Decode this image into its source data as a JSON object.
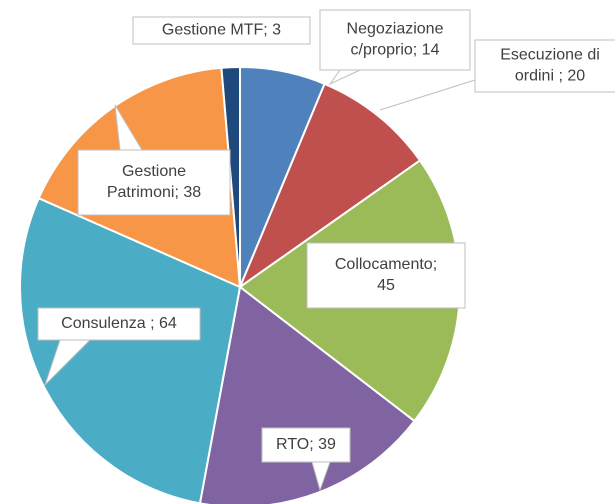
{
  "chart_data": {
    "type": "pie",
    "values": [
      14,
      20,
      45,
      39,
      64,
      38,
      3
    ],
    "value_labels": [
      [
        "Negoziazione",
        "c/proprio; 14"
      ],
      [
        "Esecuzione di",
        "ordini ; 20"
      ],
      [
        "Collocamento;",
        "45"
      ],
      [
        "RTO; 39"
      ],
      [
        "Consulenza ; 64"
      ],
      [
        "Gestione",
        "Patrimoni; 38"
      ],
      [
        "Gestione MTF; 3"
      ]
    ],
    "colors": [
      "#4f81bd",
      "#c0504d",
      "#9bbb59",
      "#8064a2",
      "#4bacc6",
      "#f79646",
      "#1f497d"
    ]
  }
}
